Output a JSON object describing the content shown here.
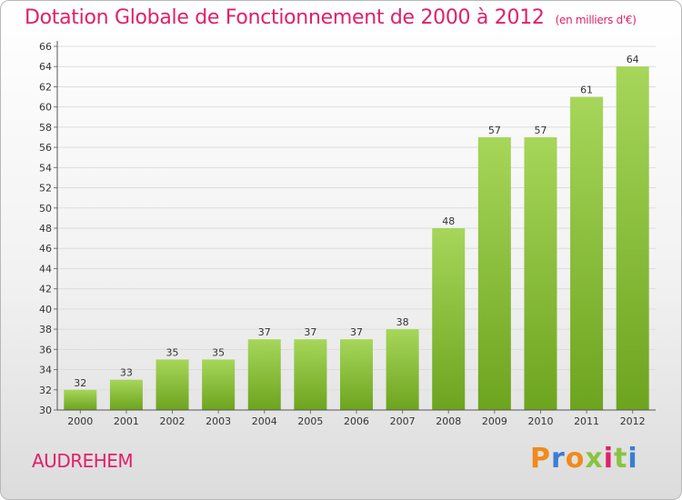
{
  "header": {
    "title": "Dotation Globale de Fonctionnement de 2000 à 2012",
    "unit": "(en milliers d'€)"
  },
  "footer": {
    "commune": "AUDREHEM",
    "logo_text": "Proxiti"
  },
  "colors": {
    "title": "#e0206c",
    "bar_light": "#a6d65a",
    "bar_dark": "#6da41e",
    "grid": "#dddddd",
    "logo_letters": [
      "#f08a1c",
      "#3a7dd4",
      "#f08a1c",
      "#8ac43f",
      "#e0206c",
      "#8ac43f",
      "#3a7dd4"
    ]
  },
  "chart_data": {
    "type": "bar",
    "categories": [
      "2000",
      "2001",
      "2002",
      "2003",
      "2004",
      "2005",
      "2006",
      "2007",
      "2008",
      "2009",
      "2010",
      "2011",
      "2012"
    ],
    "values": [
      32,
      33,
      35,
      35,
      37,
      37,
      37,
      38,
      48,
      57,
      57,
      61,
      64
    ],
    "title": "Dotation Globale de Fonctionnement de 2000 à 2012",
    "xlabel": "",
    "ylabel": "",
    "ylim": [
      30,
      66
    ],
    "ytick_step": 2,
    "grid": true,
    "legend": "none"
  }
}
